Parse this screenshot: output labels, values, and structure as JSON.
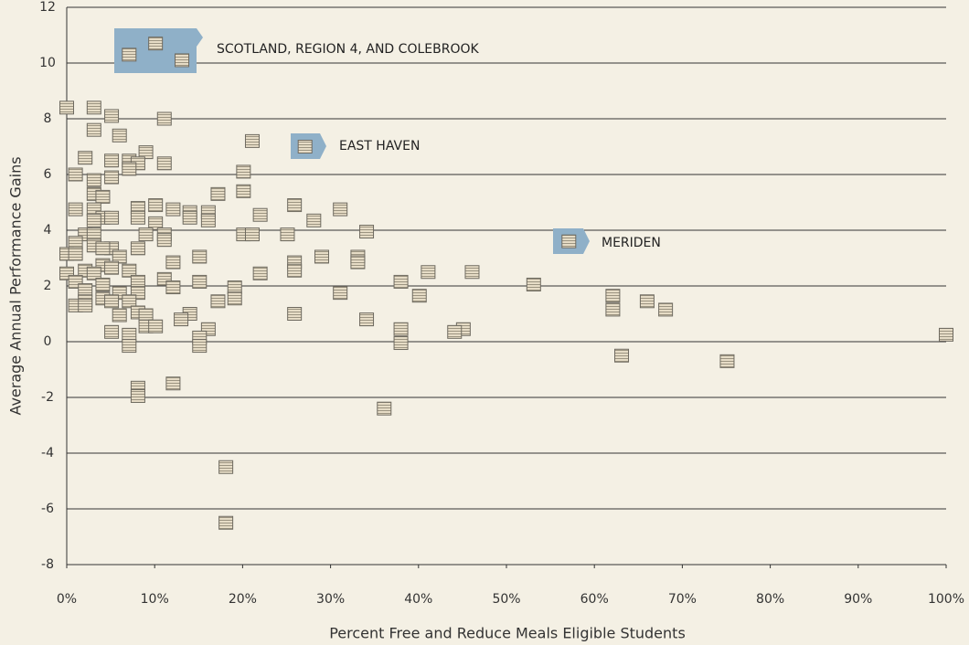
{
  "chart_data": {
    "type": "scatter",
    "xlabel": "Percent Free and Reduce Meals Eligible Students",
    "ylabel": "Average Annual Performance Gains",
    "annotations": [
      "SCOTLAND, REGION 4, AND COLEBROOK",
      "EAST HAVEN",
      "MERIDEN"
    ],
    "xlim": [
      0,
      100
    ],
    "xticks": [
      {
        "value": 0,
        "label": "0%"
      },
      {
        "value": 10,
        "label": "10%"
      },
      {
        "value": 20,
        "label": "20%"
      },
      {
        "value": 30,
        "label": "30%"
      },
      {
        "value": 40,
        "label": "40%"
      },
      {
        "value": 50,
        "label": "50%"
      },
      {
        "value": 60,
        "label": "60%"
      },
      {
        "value": 70,
        "label": "70%"
      },
      {
        "value": 80,
        "label": "80%"
      },
      {
        "value": 90,
        "label": "90%"
      },
      {
        "value": 100,
        "label": "100%"
      }
    ],
    "ylim": [
      -8,
      12
    ],
    "yticks": [
      -8,
      -6,
      -4,
      -2,
      0,
      2,
      4,
      6,
      8,
      10,
      12
    ],
    "grid": true,
    "series": [
      {
        "color": "#e6dcc6",
        "x": [
          0,
          3.1,
          5.1,
          11.1,
          3.1,
          6,
          21.1,
          9,
          2.1,
          5.1,
          7.1,
          8.1,
          11.1,
          7.1,
          1,
          20.1,
          5.1,
          3.1,
          3.1,
          4.1,
          17.2,
          20.1,
          10.1,
          8.1,
          25.9,
          1,
          3.1,
          12.1,
          31.1,
          14,
          16.1,
          8.1,
          4.1,
          5.1,
          3.1,
          14,
          16.1,
          22,
          28.1,
          10.1,
          2.1,
          3.1,
          9,
          11.1,
          11.1,
          20.1,
          21.1,
          25.1,
          34.1,
          1,
          3.1,
          5.1,
          4.1,
          8.1,
          0,
          1,
          6,
          15.1,
          29,
          33.1,
          33.1,
          12.1,
          25.9,
          4.1,
          5.1,
          2.1,
          7.1,
          25.9,
          0,
          3.1,
          22,
          41.1,
          46.1,
          11.1,
          8.1,
          15.1,
          38,
          1,
          4.1,
          12.1,
          19.1,
          53.1,
          2.1,
          6,
          8.1,
          31.1,
          40.1,
          62.1,
          4.1,
          5.1,
          2.1,
          7.1,
          19.1,
          17.2,
          66,
          1,
          2.1,
          62.1,
          68.1,
          8.1,
          14,
          6,
          9,
          25.9,
          13,
          34.1,
          9,
          10.1,
          16.1,
          38,
          45.1,
          44.1,
          5.1,
          7.1,
          15.1,
          100,
          38,
          7.1,
          15.1,
          63.1,
          75.1,
          12.1,
          8.1,
          8.1,
          36.1,
          18.1,
          18.1,
          7.1,
          10.1,
          13.1,
          27.1,
          57.1
        ],
        "values": [
          8.4,
          8.4,
          8.1,
          8,
          7.6,
          7.4,
          7.2,
          6.8,
          6.6,
          6.5,
          6.5,
          6.4,
          6.4,
          6.2,
          6,
          6.1,
          5.9,
          5.8,
          5.3,
          5.2,
          5.3,
          5.4,
          4.9,
          4.8,
          4.9,
          4.75,
          4.75,
          4.75,
          4.75,
          4.65,
          4.65,
          4.45,
          4.45,
          4.45,
          4.35,
          4.45,
          4.35,
          4.55,
          4.35,
          4.25,
          3.85,
          3.85,
          3.85,
          3.85,
          3.65,
          3.85,
          3.85,
          3.85,
          3.95,
          3.55,
          3.45,
          3.35,
          3.35,
          3.35,
          3.15,
          3.15,
          3.05,
          3.05,
          3.05,
          3.05,
          2.85,
          2.85,
          2.85,
          2.75,
          2.65,
          2.55,
          2.55,
          2.55,
          2.45,
          2.45,
          2.45,
          2.5,
          2.5,
          2.25,
          2.15,
          2.15,
          2.15,
          2.15,
          2.05,
          1.95,
          1.95,
          2.05,
          1.85,
          1.75,
          1.75,
          1.75,
          1.65,
          1.65,
          1.55,
          1.45,
          1.45,
          1.45,
          1.55,
          1.45,
          1.45,
          1.3,
          1.3,
          1.15,
          1.15,
          1.05,
          1,
          0.95,
          0.95,
          1,
          0.8,
          0.8,
          0.55,
          0.55,
          0.45,
          0.45,
          0.45,
          0.35,
          0.35,
          0.25,
          0.15,
          0.25,
          -0.05,
          -0.15,
          -0.15,
          -0.5,
          -0.7,
          -1.5,
          -1.65,
          -1.95,
          -2.4,
          -4.5,
          -6.5,
          10.3,
          10.7,
          10.1,
          7,
          3.6
        ]
      }
    ]
  }
}
